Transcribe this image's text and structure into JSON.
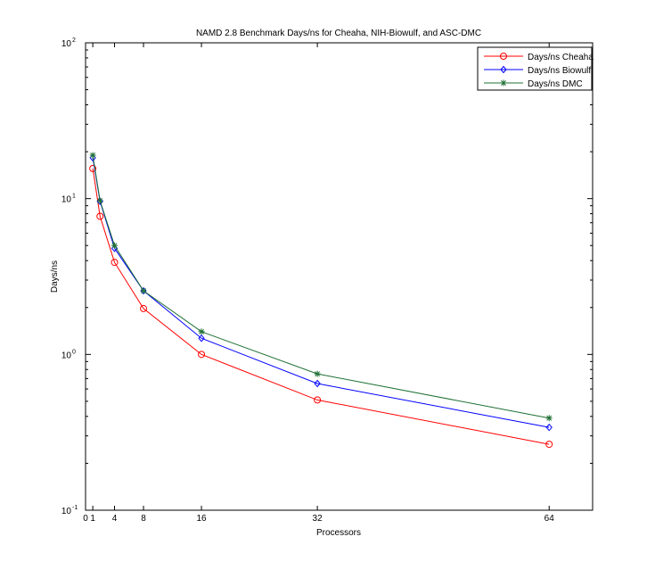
{
  "chart_data": {
    "type": "line",
    "title": "NAMD 2.8 Benchmark Days/ns for Cheaha, NIH-Biowulf, and ASC-DMC",
    "xlabel": "Processors",
    "ylabel": "Days/ns",
    "xlim": [
      0,
      70
    ],
    "ylim": [
      0.1,
      100
    ],
    "yscale": "log",
    "xticks": [
      0,
      1,
      4,
      8,
      16,
      32,
      64
    ],
    "yticks": [
      {
        "value": 0.1,
        "base": "10",
        "exp": "-1"
      },
      {
        "value": 1,
        "base": "10",
        "exp": "0"
      },
      {
        "value": 10,
        "base": "10",
        "exp": "1"
      },
      {
        "value": 100,
        "base": "10",
        "exp": "2"
      }
    ],
    "x": [
      1,
      2,
      4,
      8,
      16,
      32,
      64
    ],
    "series": [
      {
        "name": "Days/ns Cheaha",
        "color": "#ff0000",
        "marker": "circle",
        "values": [
          15.6,
          7.7,
          3.9,
          1.97,
          1.0,
          0.51,
          0.265
        ]
      },
      {
        "name": "Days/ns Biowulf",
        "color": "#0000ff",
        "marker": "diamond",
        "values": [
          18.3,
          9.6,
          4.8,
          2.56,
          1.27,
          0.65,
          0.34
        ]
      },
      {
        "name": "Days/ns DMC",
        "color": "#1e7034",
        "marker": "star",
        "values": [
          19.0,
          9.7,
          5.0,
          2.56,
          1.4,
          0.75,
          0.39
        ]
      }
    ],
    "legend": "top-right",
    "grid": false
  }
}
